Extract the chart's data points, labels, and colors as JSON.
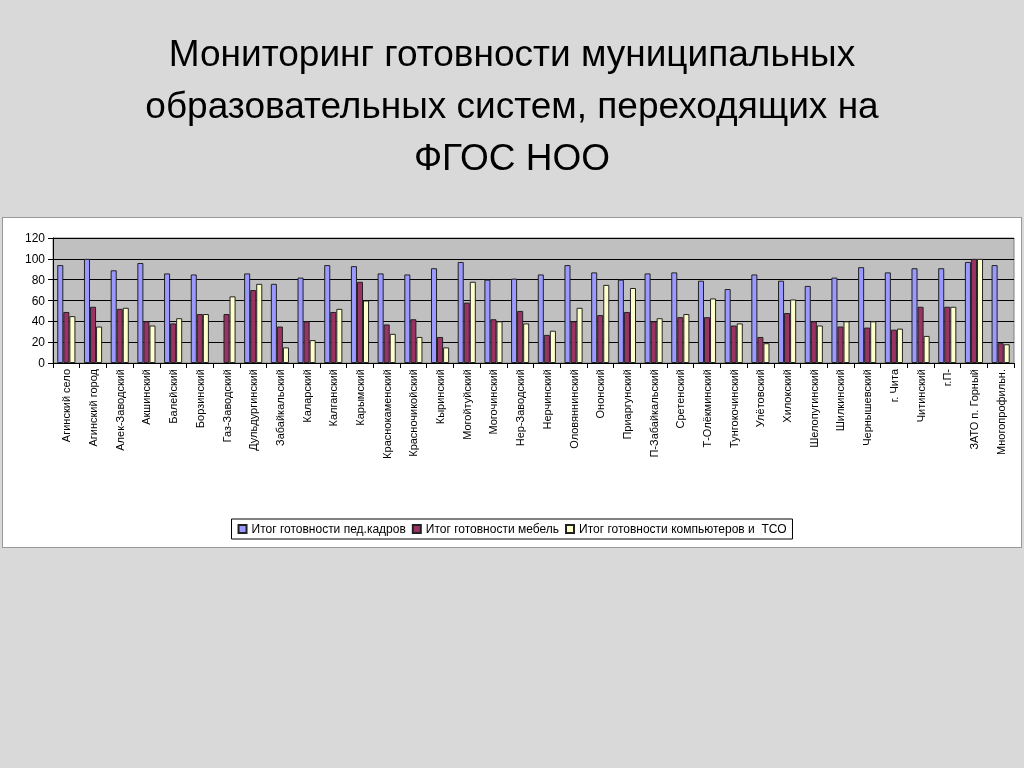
{
  "chart_data": {
    "type": "bar",
    "title": "Мониторинг готовности муниципальных образовательных систем, переходящих на ФГОС НОО",
    "categories": [
      "Агинский село",
      "Агинский город",
      "Алек-Заводский",
      "Акшинский",
      "Балейский",
      "Борзинский",
      "Газ-Заводский",
      "Дульдургинский",
      "Забайкальский",
      "Каларский",
      "Калганский",
      "Карымский",
      "Краснокаменский",
      "Красночикойский",
      "Кыринский",
      "Могойтуйский",
      "Могочинский",
      "Нер-Заводский",
      "Нерчинский",
      "Оловяннинский",
      "Ононский",
      "Приаргунский",
      "П-Забайкальский",
      "Сретенский",
      "Т-Олёкминский",
      "Тунгокочинский",
      "Улётовский",
      "Хилокский",
      "Шелопугинский",
      "Шилкинский",
      "Чернышевский",
      "г. Чита",
      "Читинский",
      "г.П-",
      "ЗАТО п. Горный",
      "Многопрофильн."
    ],
    "series": [
      {
        "name": "Итог готовности пед.кадров",
        "color": "#9999ff",
        "values": [
          94,
          100,
          89,
          96,
          86,
          85,
          null,
          86,
          76,
          82,
          94,
          93,
          86,
          85,
          91,
          97,
          80,
          81,
          85,
          94,
          87,
          80,
          86,
          87,
          79,
          71,
          85,
          79,
          74,
          82,
          92,
          87,
          91,
          91,
          97,
          94
        ]
      },
      {
        "name": "Итог готовности мебель",
        "color": "#993366",
        "values": [
          49,
          54,
          52,
          40,
          38,
          47,
          47,
          70,
          35,
          40,
          49,
          78,
          37,
          42,
          25,
          58,
          42,
          50,
          27,
          40,
          46,
          49,
          40,
          44,
          44,
          36,
          25,
          48,
          40,
          35,
          34,
          32,
          54,
          54,
          100,
          19
        ]
      },
      {
        "name": "Итог готовности компьютеров и  ТСО",
        "color": "#ffffcc",
        "values": [
          45,
          35,
          53,
          36,
          43,
          47,
          64,
          76,
          15,
          22,
          52,
          60,
          28,
          25,
          15,
          78,
          40,
          38,
          31,
          53,
          75,
          72,
          43,
          47,
          62,
          38,
          19,
          61,
          36,
          40,
          40,
          33,
          26,
          54,
          100,
          18
        ]
      }
    ],
    "ylim": [
      0,
      120
    ],
    "yticks": [
      0,
      20,
      40,
      60,
      80,
      100,
      120
    ],
    "grid": "y",
    "legend": "bottom"
  }
}
